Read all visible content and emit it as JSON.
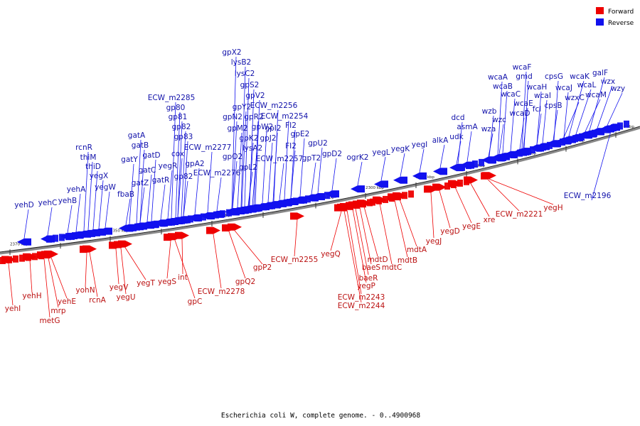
{
  "caption": "Escherichia coli W, complete genome. - 0..4900968",
  "legend": [
    {
      "label": "Forward",
      "color": "#ee0000"
    },
    {
      "label": "Reverse",
      "color": "#1111ee"
    }
  ],
  "ticks": [
    "2250 kbp",
    "2260 kbp",
    "2270 kbp",
    "2280 kbp",
    "2290 kbp",
    "2300 kbp",
    "2310 kbp",
    "2320 kbp",
    "2330 kbp",
    "2340 kbp",
    "2350 kbp",
    "2360 kbp",
    "2370 kbp"
  ],
  "reverse_labels": [
    "wzy",
    "wzx",
    "galF",
    "wcaM",
    "wcaL",
    "wcaK",
    "wzxC",
    "wcaJ",
    "cpsG",
    "cpsB",
    "wcaI",
    "fcl",
    "wcaH",
    "gmd",
    "wcaF",
    "wcaE",
    "wcaD",
    "wcaC",
    "wcaB",
    "wcaA",
    "wzb",
    "wzc",
    "wza",
    "udk",
    "asmA",
    "dcd",
    "alkA",
    "yegI",
    "yegK",
    "yegL",
    "ogrK2",
    "gpD2",
    "gpU2",
    "gpT2",
    "ECW_m2257",
    "FI2",
    "gpE2",
    "ECW_m2254",
    "FI2",
    "gpI2",
    "gpJ2",
    "ECW_m2256",
    "gpW2",
    "gpR2",
    "gpV2",
    "gpS2",
    "lysA2",
    "gpK2",
    "lysC2",
    "lysB2",
    "gpL2",
    "gpY2",
    "gpM2",
    "gpN2",
    "gpX2",
    "gpO2",
    "ECW_m2276",
    "ECW_m2277",
    "gpA2",
    "gp82",
    "gp83",
    "cox",
    "gp82",
    "gp81",
    "gp80",
    "ECW_m2285",
    "yegR",
    "gatR",
    "gatD",
    "gatC",
    "gatZ",
    "gatB",
    "gatA",
    "gatY",
    "fbaB",
    "yegW",
    "yegX",
    "thiD",
    "thiM",
    "rcnR",
    "yehA",
    "yehB",
    "yehC",
    "yehD",
    "ECW_m2196"
  ],
  "forward_labels": [
    "yegH",
    "ECW_m2221",
    "xre",
    "yegE",
    "yegD",
    "yegJ",
    "mdtA",
    "mdtB",
    "mdtC",
    "mdtD",
    "baeS",
    "baeR",
    "yegP",
    "ECW_m2243",
    "ECW_m2244",
    "yegQ",
    "ECW_m2255",
    "gpP2",
    "gpQ2",
    "ECW_m2278",
    "gpC",
    "int",
    "yegS",
    "yegT",
    "yegU",
    "yegV",
    "rcnA",
    "yohN",
    "yehE",
    "mrp",
    "metG",
    "yehH",
    "yehI"
  ]
}
